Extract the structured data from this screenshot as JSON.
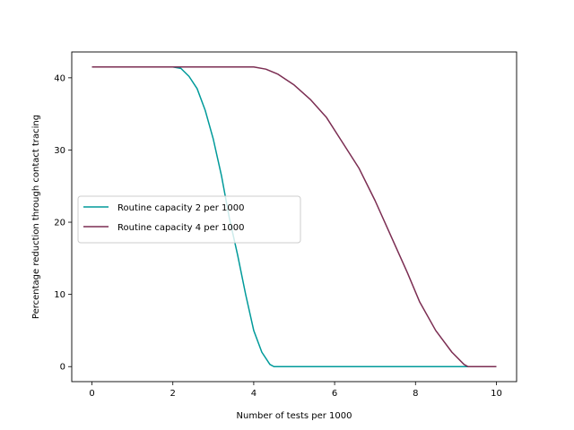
{
  "chart_data": {
    "type": "line",
    "xlabel": "Number of tests per 1000",
    "ylabel": "Percentage reduction through contact tracing",
    "xlim": [
      -0.5,
      10.5
    ],
    "ylim": [
      -2.08,
      43.58
    ],
    "xticks": [
      0,
      2,
      4,
      6,
      8,
      10
    ],
    "yticks": [
      0,
      10,
      20,
      30,
      40
    ],
    "grid": false,
    "legend_position": "center-left",
    "series": [
      {
        "name": "Routine capacity 2 per 1000",
        "color": "#009a9a",
        "points": [
          [
            0,
            41.5
          ],
          [
            2.0,
            41.5
          ],
          [
            2.2,
            41.3
          ],
          [
            2.4,
            40.2
          ],
          [
            2.6,
            38.5
          ],
          [
            2.8,
            35.5
          ],
          [
            3.0,
            31.5
          ],
          [
            3.2,
            26.5
          ],
          [
            3.4,
            20.5
          ],
          [
            3.6,
            15.5
          ],
          [
            3.8,
            10.0
          ],
          [
            4.0,
            5.0
          ],
          [
            4.2,
            2.0
          ],
          [
            4.4,
            0.3
          ],
          [
            4.5,
            0.0
          ],
          [
            10,
            0.0
          ]
        ]
      },
      {
        "name": "Routine capacity 4 per 1000",
        "color": "#7b2d52",
        "points": [
          [
            0,
            41.5
          ],
          [
            4.0,
            41.5
          ],
          [
            4.3,
            41.2
          ],
          [
            4.6,
            40.5
          ],
          [
            5.0,
            39.0
          ],
          [
            5.4,
            37.0
          ],
          [
            5.8,
            34.5
          ],
          [
            6.2,
            31.0
          ],
          [
            6.6,
            27.5
          ],
          [
            7.0,
            23.0
          ],
          [
            7.4,
            18.0
          ],
          [
            7.8,
            13.0
          ],
          [
            8.1,
            9.0
          ],
          [
            8.5,
            5.0
          ],
          [
            8.9,
            2.0
          ],
          [
            9.2,
            0.3
          ],
          [
            9.3,
            0.0
          ],
          [
            10,
            0.0
          ]
        ]
      }
    ]
  }
}
